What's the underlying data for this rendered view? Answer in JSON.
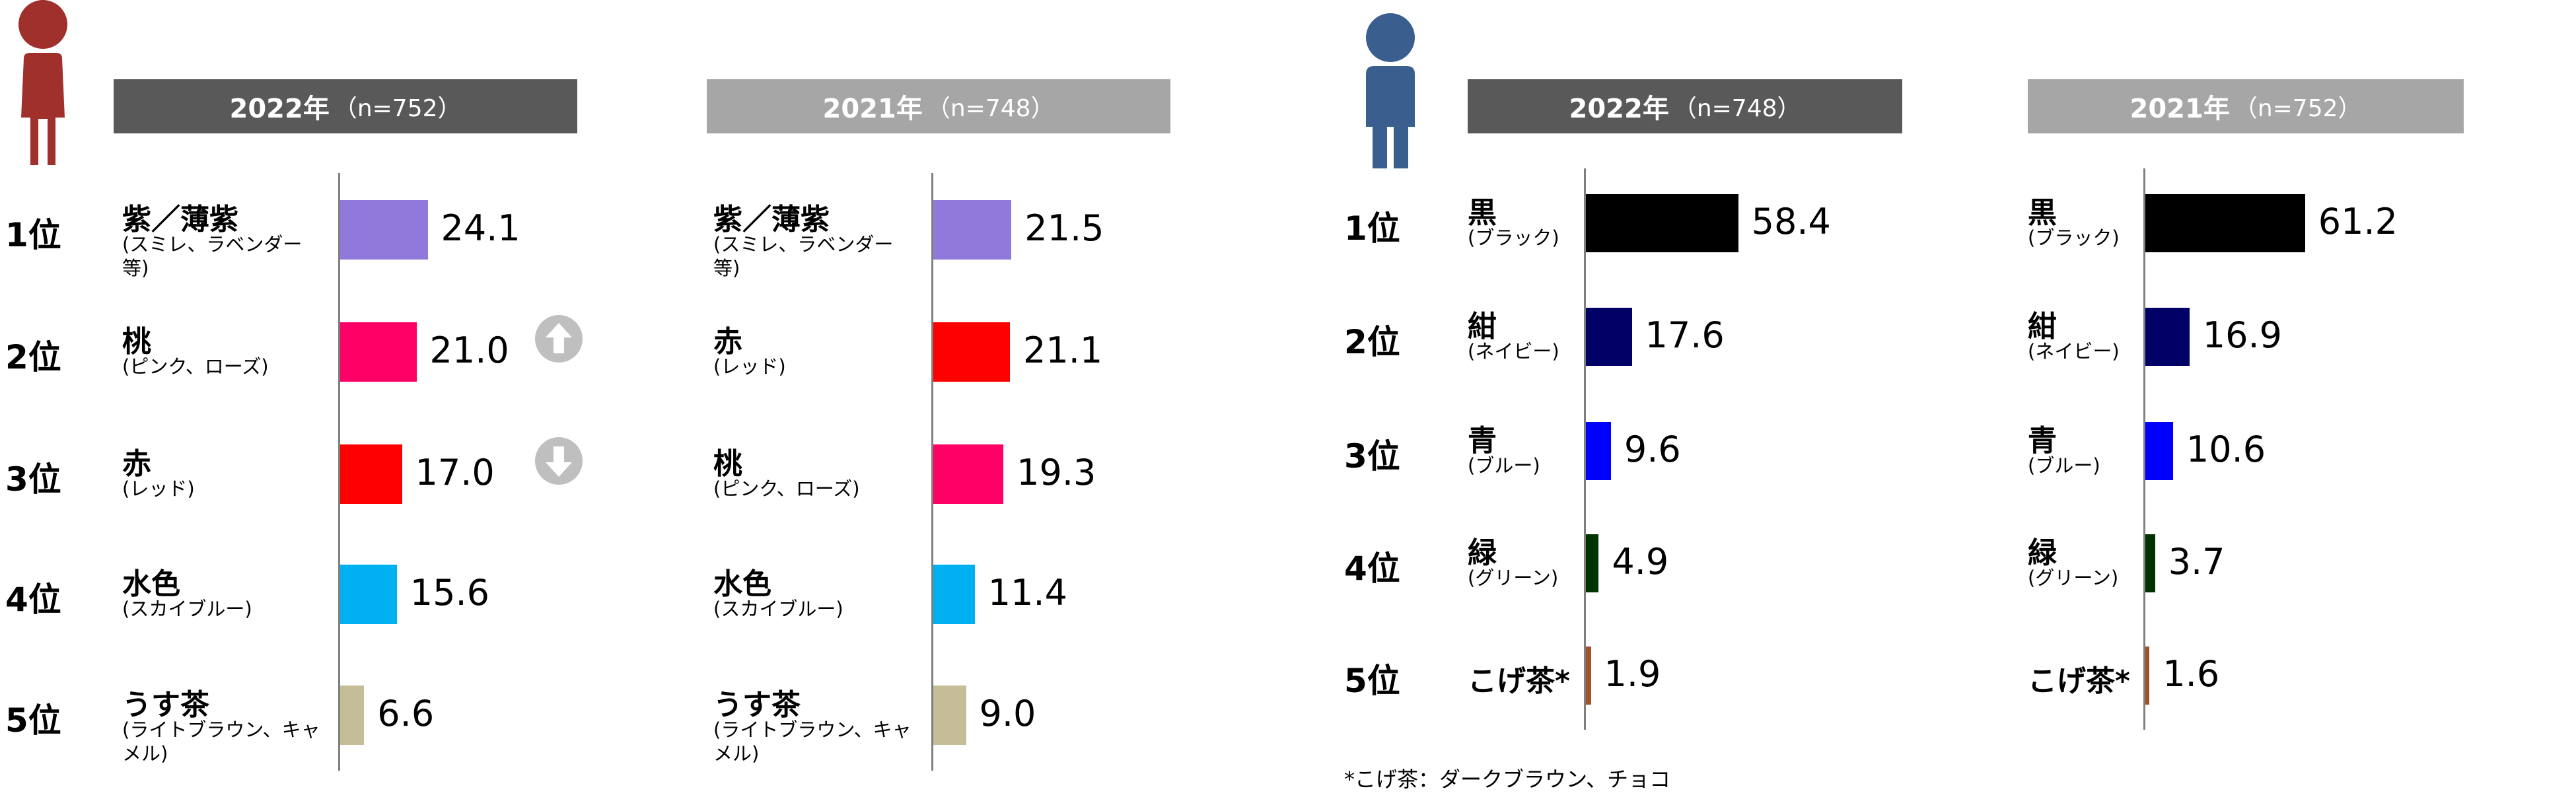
{
  "chart_data": [
    {
      "type": "bar",
      "orientation": "horizontal",
      "gender": "female",
      "year": "2022年",
      "n": "（n=752）",
      "categories": [
        {
          "rank": "1位",
          "name": "紫／薄紫",
          "sub": "(スミレ、ラベンダー等)",
          "value": 24.1,
          "label": "24.1",
          "color": "#9179dc",
          "trend": null
        },
        {
          "rank": "2位",
          "name": "桃",
          "sub": "(ピンク、ローズ)",
          "value": 21.0,
          "label": "21.0",
          "color": "#ff0066",
          "trend": "up"
        },
        {
          "rank": "3位",
          "name": "赤",
          "sub": "(レッド)",
          "value": 17.0,
          "label": "17.0",
          "color": "#ff0000",
          "trend": "down"
        },
        {
          "rank": "4位",
          "name": "水色",
          "sub": "(スカイブルー)",
          "value": 15.6,
          "label": "15.6",
          "color": "#00b0f0",
          "trend": null
        },
        {
          "rank": "5位",
          "name": "うす茶",
          "sub": "(ライトブラウン、キャメル)",
          "value": 6.6,
          "label": "6.6",
          "color": "#c4bd97",
          "trend": null
        }
      ]
    },
    {
      "type": "bar",
      "orientation": "horizontal",
      "gender": "female",
      "year": "2021年",
      "n": "（n=748）",
      "categories": [
        {
          "name": "紫／薄紫",
          "sub": "(スミレ、ラベンダー等)",
          "value": 21.5,
          "label": "21.5",
          "color": "#9179dc"
        },
        {
          "name": "赤",
          "sub": "(レッド)",
          "value": 21.1,
          "label": "21.1",
          "color": "#ff0000"
        },
        {
          "name": "桃",
          "sub": "(ピンク、ローズ)",
          "value": 19.3,
          "label": "19.3",
          "color": "#ff0066"
        },
        {
          "name": "水色",
          "sub": "(スカイブルー)",
          "value": 11.4,
          "label": "11.4",
          "color": "#00b0f0"
        },
        {
          "name": "うす茶",
          "sub": "(ライトブラウン、キャメル)",
          "value": 9.0,
          "label": "9.0",
          "color": "#c4bd97"
        }
      ]
    },
    {
      "type": "bar",
      "orientation": "horizontal",
      "gender": "male",
      "year": "2022年",
      "n": "（n=748）",
      "categories": [
        {
          "rank": "1位",
          "name": "黒",
          "sub": "(ブラック)",
          "value": 58.4,
          "label": "58.4",
          "color": "#000000"
        },
        {
          "rank": "2位",
          "name": "紺",
          "sub": "(ネイビー)",
          "value": 17.6,
          "label": "17.6",
          "color": "#000066"
        },
        {
          "rank": "3位",
          "name": "青",
          "sub": "(ブルー)",
          "value": 9.6,
          "label": "9.6",
          "color": "#0000ff"
        },
        {
          "rank": "4位",
          "name": "緑",
          "sub": "(グリーン)",
          "value": 4.9,
          "label": "4.9",
          "color": "#003300"
        },
        {
          "rank": "5位",
          "name": "こげ茶*",
          "sub": "",
          "value": 1.9,
          "label": "1.9",
          "color": "#a0522d"
        }
      ]
    },
    {
      "type": "bar",
      "orientation": "horizontal",
      "gender": "male",
      "year": "2021年",
      "n": "（n=752）",
      "categories": [
        {
          "name": "黒",
          "sub": "(ブラック)",
          "value": 61.2,
          "label": "61.2",
          "color": "#000000"
        },
        {
          "name": "紺",
          "sub": "(ネイビー)",
          "value": 16.9,
          "label": "16.9",
          "color": "#000066"
        },
        {
          "name": "青",
          "sub": "(ブルー)",
          "value": 10.6,
          "label": "10.6",
          "color": "#0000ff"
        },
        {
          "name": "緑",
          "sub": "(グリーン)",
          "value": 3.7,
          "label": "3.7",
          "color": "#003300"
        },
        {
          "name": "こげ茶*",
          "sub": "",
          "value": 1.6,
          "label": "1.6",
          "color": "#a0522d"
        }
      ]
    }
  ],
  "footnote": "*こげ茶：ダークブラウン、チョコ",
  "icons": {
    "female": "female-person-icon",
    "male": "male-person-icon"
  },
  "colors": {
    "female_icon": "#a0302c",
    "male_icon": "#3a5f8f",
    "header_dark": "#595959",
    "header_light": "#a6a6a6",
    "arrow": "#bfbfbf"
  }
}
